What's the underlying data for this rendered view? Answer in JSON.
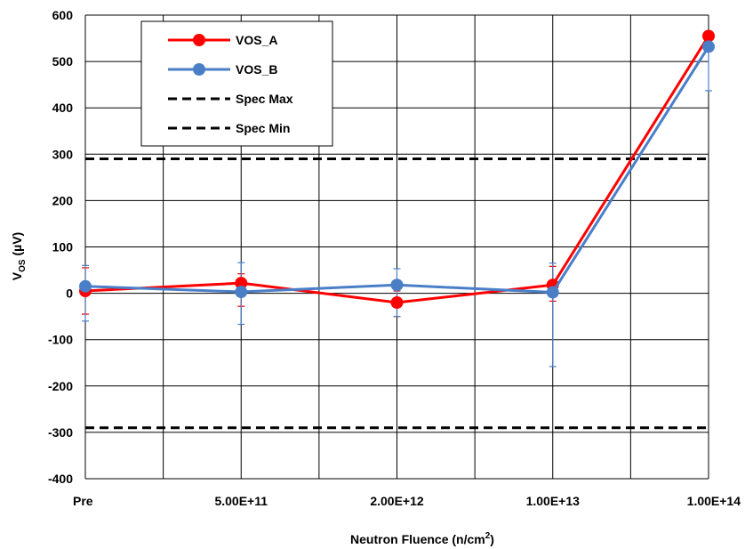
{
  "chart_data": {
    "type": "line",
    "categories": [
      "Pre",
      "5.00E+11",
      "2.00E+12",
      "1.00E+13",
      "1.00E+14"
    ],
    "xlabel": "Neutron Fluence (n/cm²)",
    "xlabel_main": "Neutron Fluence (n/cm",
    "xlabel_sup": "2",
    "xlabel_end": ")",
    "ylabel": "VOS (µV)",
    "ylabel_main": "V",
    "ylabel_sub": "OS",
    "ylabel_end": " (µV)",
    "ylim": [
      -400,
      600
    ],
    "yticks": [
      600,
      500,
      400,
      300,
      200,
      100,
      0,
      -100,
      -200,
      -300,
      -400
    ],
    "grid": true,
    "legend_placement": "top-left",
    "series": [
      {
        "name": "VOS_A",
        "color": "#ff0000",
        "values": [
          5,
          22,
          -20,
          18,
          555
        ],
        "err_plus": [
          50,
          20,
          25,
          40,
          null
        ],
        "err_minus": [
          50,
          50,
          30,
          35,
          null
        ]
      },
      {
        "name": "VOS_B",
        "color": "#4a7fc8",
        "values": [
          15,
          3,
          18,
          2,
          532
        ],
        "err_plus": [
          45,
          63,
          35,
          63,
          null
        ],
        "err_minus": [
          75,
          70,
          68,
          160,
          95
        ]
      }
    ],
    "reference_lines": [
      {
        "name": "Spec Max",
        "value": 290,
        "color": "#000000",
        "style": "dashed"
      },
      {
        "name": "Spec Min",
        "value": -290,
        "color": "#000000",
        "style": "dashed"
      }
    ]
  }
}
